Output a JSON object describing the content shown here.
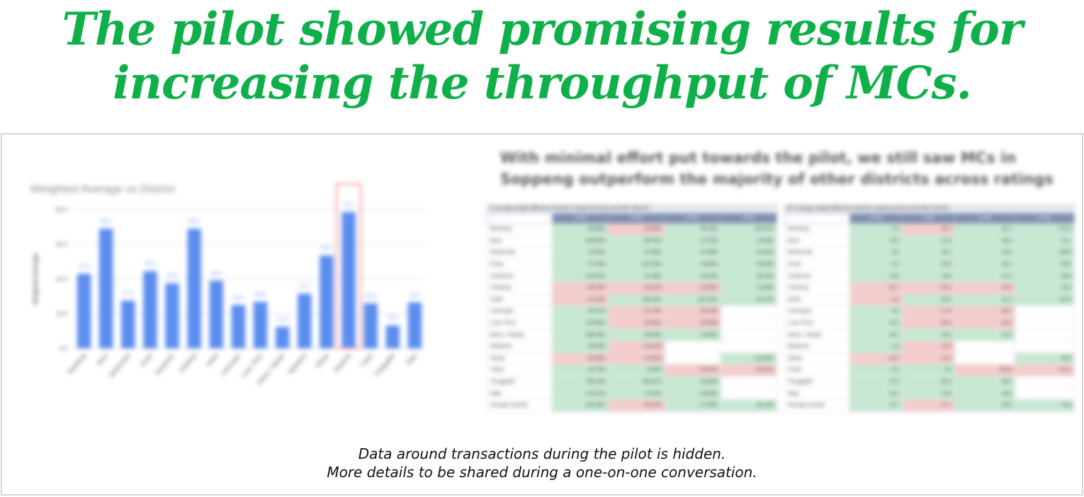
{
  "headline": {
    "line1": "The pilot showed promising results for",
    "line2": "increasing the throughput of MCs."
  },
  "chart_data": {
    "type": "bar",
    "title": "Weighted Average vs District",
    "xlabel": "",
    "ylabel": "Weighted Average",
    "ylim": [
      0,
      80
    ],
    "yticks": [
      "0.0",
      "20.0",
      "40.0",
      "60.0",
      "80.0"
    ],
    "categories": [
      "Bantaeng",
      "Bone",
      "Bulukumba",
      "Gowa",
      "Jeneponto",
      "Jombang",
      "Kediri",
      "Lamongan",
      "Luwu Timur",
      "Maros / Takalar",
      "Mojokerto",
      "Sidrap",
      "Soppeng",
      "Tuban",
      "Trenggalek",
      "Wajo"
    ],
    "values": [
      43.0,
      69.0,
      27.5,
      44.5,
      37.5,
      69.0,
      39.0,
      25.0,
      26.8,
      12.4,
      31.5,
      53.5,
      78.5,
      26.0,
      13.2,
      26.5
    ],
    "data_labels": [
      "43.0",
      "69.0",
      "27.5",
      "44.5",
      "37.5",
      "69.0",
      "39.0",
      "25.0",
      "26.8",
      "12.4",
      "31.5",
      "53.5",
      "78.5",
      "26.0",
      "13.2",
      "26.5"
    ],
    "highlight_index": 12,
    "bar_color": "#5b8def",
    "label_color": "#6f9cf5",
    "highlight_color": "#f6a0a8",
    "grid": true
  },
  "tables": {
    "title_line1": "With minimal effort put towards the pilot, we still saw MCs in",
    "title_line2": "Soppeng outperform the majority of other districts across ratings",
    "left": {
      "caption": "% average weight difference between Soppeng during and other districts",
      "columns": [
        "1 Star",
        "2 Star",
        "3 Star",
        "4 Star"
      ],
      "rows": [
        {
          "name": "Bantaeng",
          "cells": [
            [
              "g",
              "86.66%"
            ],
            [
              "r",
              "-21.83%"
            ],
            [
              "g",
              "63.16%"
            ],
            [
              "g",
              "120.07%"
            ]
          ]
        },
        {
          "name": "Bone",
          "cells": [
            [
              "g",
              "130.50%"
            ],
            [
              "g",
              "88.75%"
            ],
            [
              "g",
              "37.79%"
            ],
            [
              "g",
              "16.08%"
            ]
          ]
        },
        {
          "name": "Bulukumba",
          "cells": [
            [
              "g",
              "72.00%"
            ],
            [
              "g",
              "67.66%"
            ],
            [
              "g",
              "31.58%"
            ],
            [
              "g",
              "61.92%"
            ]
          ]
        },
        {
          "name": "Gowa",
          "cells": [
            [
              "g",
              "57.78%"
            ],
            [
              "g",
              "127.64%"
            ],
            [
              "g",
              "44.89%"
            ],
            [
              "g",
              "63.06%"
            ]
          ]
        },
        {
          "name": "Jeneponto",
          "cells": [
            [
              "g",
              "220.67%"
            ],
            [
              "g",
              "31.66%"
            ],
            [
              "g",
              "20.24%"
            ],
            [
              "g",
              "39.33%"
            ]
          ]
        },
        {
          "name": "Jombang",
          "cells": [
            [
              "r",
              "-86.23%"
            ],
            [
              "r",
              "-34.02%"
            ],
            [
              "r",
              "-15.66%"
            ],
            [
              "g",
              "22.88%"
            ]
          ]
        },
        {
          "name": "Kediri",
          "cells": [
            [
              "r",
              "-21.05%"
            ],
            [
              "g",
              "136.29%"
            ],
            [
              "g",
              "161.22%"
            ],
            [
              "g",
              "50.47%"
            ]
          ]
        },
        {
          "name": "Lamongan",
          "cells": [
            [
              "g",
              "62.61%"
            ],
            [
              "r",
              "-21.79%"
            ],
            [
              "r",
              "-36.43%"
            ],
            [
              "w",
              ""
            ]
          ]
        },
        {
          "name": "Luwu Timur",
          "cells": [
            [
              "g",
              "116.66%"
            ],
            [
              "r",
              "-26.48%"
            ],
            [
              "r",
              "-20.69%"
            ],
            [
              "w",
              ""
            ]
          ]
        },
        {
          "name": "Maros / Takalar",
          "cells": [
            [
              "g",
              "285.34%"
            ],
            [
              "g",
              "56.09%"
            ],
            [
              "g",
              "16.66%"
            ],
            [
              "w",
              ""
            ]
          ]
        },
        {
          "name": "Mojokerto",
          "cells": [
            [
              "g",
              "35.60%"
            ],
            [
              "r",
              "-24.01%"
            ],
            [
              "w",
              ""
            ],
            [
              "w",
              ""
            ]
          ]
        },
        {
          "name": "Sidrap",
          "cells": [
            [
              "r",
              "-54.33%"
            ],
            [
              "r",
              "-24.60%"
            ],
            [
              "w",
              ""
            ],
            [
              "g",
              "133.96%"
            ]
          ]
        },
        {
          "name": "Tuban",
          "cells": [
            [
              "g",
              "42.76%"
            ],
            [
              "g",
              "9.39%"
            ],
            [
              "r",
              "-34.44%"
            ],
            [
              "r",
              "-26.51%"
            ]
          ]
        },
        {
          "name": "Trenggalek",
          "cells": [
            [
              "g",
              "750.10%"
            ],
            [
              "g",
              "208.07%"
            ],
            [
              "g",
              "28.49%"
            ],
            [
              "w",
              ""
            ]
          ]
        },
        {
          "name": "Wajo",
          "cells": [
            [
              "g",
              "173.57%"
            ],
            [
              "g",
              "74.24%"
            ],
            [
              "g",
              "33.69%"
            ],
            [
              "w",
              ""
            ]
          ]
        },
        {
          "name": "Average (sorted)",
          "cells": [
            [
              "g",
              "140.25%"
            ],
            [
              "r",
              "-31.67%"
            ],
            [
              "g",
              "27.39%"
            ],
            [
              "g",
              "56.26%"
            ]
          ]
        }
      ]
    },
    "right": {
      "caption": "MT average weight difference between Soppeng during and other districts",
      "columns": [
        "1 Star",
        "2 Star",
        "3 Star",
        "4 Star"
      ],
      "rows": [
        {
          "name": "Bantaeng",
          "cells": [
            [
              "g",
              "9.1"
            ],
            [
              "r",
              "-16.1"
            ],
            [
              "g",
              "61.2"
            ],
            [
              "g",
              "172.8"
            ]
          ]
        },
        {
          "name": "Bone",
          "cells": [
            [
              "g",
              "13.5"
            ],
            [
              "g",
              "21.8"
            ],
            [
              "g",
              "36.5"
            ],
            [
              "g",
              "31.1"
            ]
          ]
        },
        {
          "name": "Bulukumba",
          "cells": [
            [
              "g",
              "8.4"
            ],
            [
              "g",
              "30.1"
            ],
            [
              "g",
              "40.5"
            ],
            [
              "g",
              "108.6"
            ]
          ]
        },
        {
          "name": "Gowa",
          "cells": [
            [
              "g",
              "8.2"
            ],
            [
              "g",
              "55.8"
            ],
            [
              "g",
              "48.1"
            ],
            [
              "g",
              "88.5"
            ]
          ]
        },
        {
          "name": "Jeneponto",
          "cells": [
            [
              "g",
              "15.6"
            ],
            [
              "g",
              "19.6"
            ],
            [
              "g",
              "21.2"
            ],
            [
              "g",
              "58.9"
            ]
          ]
        },
        {
          "name": "Jombang",
          "cells": [
            [
              "r",
              "-26.7"
            ],
            [
              "r",
              "-20.3"
            ],
            [
              "r",
              "-23.4"
            ],
            [
              "g",
              "32.4"
            ]
          ]
        },
        {
          "name": "Kediri",
          "cells": [
            [
              "r",
              "-4.3"
            ],
            [
              "g",
              "59.3"
            ],
            [
              "g",
              "91.3"
            ],
            [
              "g",
              "113.6"
            ]
          ]
        },
        {
          "name": "Lamongan",
          "cells": [
            [
              "g",
              "9.6"
            ],
            [
              "r",
              "-17.8"
            ],
            [
              "r",
              "-66.1"
            ],
            [
              "w",
              ""
            ]
          ]
        },
        {
          "name": "Luwu Timur",
          "cells": [
            [
              "g",
              "15.2"
            ],
            [
              "r",
              "-28.4"
            ],
            [
              "r",
              "-22.6"
            ],
            [
              "w",
              ""
            ]
          ]
        },
        {
          "name": "Maros / Takalar",
          "cells": [
            [
              "g",
              "18.7"
            ],
            [
              "g",
              "28.0"
            ],
            [
              "g",
              "22.0"
            ],
            [
              "w",
              ""
            ]
          ]
        },
        {
          "name": "Mojokerto",
          "cells": [
            [
              "g",
              "4.8"
            ],
            [
              "r",
              "-22.3"
            ],
            [
              "w",
              ""
            ],
            [
              "w",
              ""
            ]
          ]
        },
        {
          "name": "Sidrap",
          "cells": [
            [
              "r",
              "-26.5"
            ],
            [
              "r",
              "-19.0"
            ],
            [
              "w",
              ""
            ],
            [
              "g",
              "98.5"
            ]
          ]
        },
        {
          "name": "Tuban",
          "cells": [
            [
              "g",
              "6.3"
            ],
            [
              "g",
              "5.8"
            ],
            [
              "r",
              "-108.8"
            ],
            [
              "r",
              "-113.1"
            ]
          ]
        },
        {
          "name": "Trenggalek",
          "cells": [
            [
              "g",
              "17.6"
            ],
            [
              "g",
              "85.6"
            ],
            [
              "g",
              "38.7"
            ],
            [
              "w",
              ""
            ]
          ]
        },
        {
          "name": "Wajo",
          "cells": [
            [
              "g",
              "16.1"
            ],
            [
              "g",
              "15.8"
            ],
            [
              "g",
              "46.6"
            ],
            [
              "w",
              ""
            ]
          ]
        },
        {
          "name": "Average (sorted)",
          "cells": [
            [
              "g",
              "12.7"
            ],
            [
              "r",
              "-11.7"
            ],
            [
              "g",
              "28.3"
            ],
            [
              "g",
              "79.8"
            ]
          ]
        }
      ]
    }
  },
  "note": {
    "line1": "Data around transactions during the pilot is hidden.",
    "line2": "More details to be shared during a one-on-one conversation."
  }
}
